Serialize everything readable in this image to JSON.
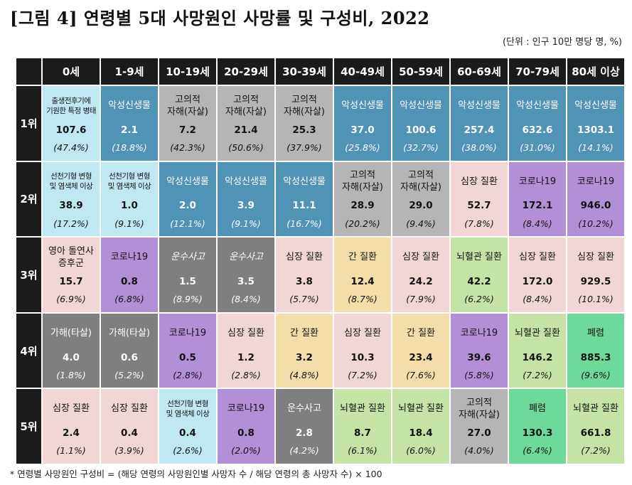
{
  "title": "[그림 4] 연령별 5대 사망원인 사망률 및 구성비, 2022",
  "unit": "(단위 : 인구 10만 명당 명, %)",
  "footnote": "* 연령별 사망원인 구성비 = (해당 연령의 사망원인별 사망자 수 / 해당 연령의 총 사망자 수) × 100",
  "colors": {
    "header": "#1b1b1b",
    "malignant_neoplasm": "#4f93b5",
    "suicide": "#b5b5b5",
    "perinatal": "#bfe8f2",
    "congenital": "#bfe8f2",
    "covid19": "#b38fd6",
    "heart": "#f2d6d6",
    "sids": "#f2d6d6",
    "transport": "#7f7f7f",
    "assault": "#7f7f7f",
    "liver": "#f5dcab",
    "cerebrovascular": "#c5e3a6",
    "pneumonia": "#6ed99a"
  },
  "columns": [
    "0세",
    "1-9세",
    "10-19세",
    "20-29세",
    "30-39세",
    "40-49세",
    "50-59세",
    "60-69세",
    "70-79세",
    "80세 이상"
  ],
  "rows": [
    {
      "rank": "1위",
      "cells": [
        {
          "name": "출생전후기에\n기원한 특정 병태",
          "value": "107.6",
          "pct": "(47.4%)",
          "bg": "#bfe8f2",
          "small": true
        },
        {
          "name": "악성신생물",
          "value": "2.1",
          "pct": "(18.8%)",
          "bg": "#4f93b5",
          "light": true
        },
        {
          "name": "고의적\n자해(자살)",
          "value": "7.2",
          "pct": "(42.3%)",
          "bg": "#b5b5b5"
        },
        {
          "name": "고의적\n자해(자살)",
          "value": "21.4",
          "pct": "(50.6%)",
          "bg": "#b5b5b5"
        },
        {
          "name": "고의적\n자해(자살)",
          "value": "25.3",
          "pct": "(37.9%)",
          "bg": "#b5b5b5"
        },
        {
          "name": "악성신생물",
          "value": "37.0",
          "pct": "(25.8%)",
          "bg": "#4f93b5",
          "light": true
        },
        {
          "name": "악성신생물",
          "value": "100.6",
          "pct": "(32.7%)",
          "bg": "#4f93b5",
          "light": true
        },
        {
          "name": "악성신생물",
          "value": "257.4",
          "pct": "(38.0%)",
          "bg": "#4f93b5",
          "light": true
        },
        {
          "name": "악성신생물",
          "value": "632.6",
          "pct": "(31.0%)",
          "bg": "#4f93b5",
          "light": true
        },
        {
          "name": "악성신생물",
          "value": "1303.1",
          "pct": "(14.1%)",
          "bg": "#4f93b5",
          "light": true
        }
      ]
    },
    {
      "rank": "2위",
      "cells": [
        {
          "name": "선천기형 변형\n및 염색체 이상",
          "value": "38.9",
          "pct": "(17.2%)",
          "bg": "#bfe8f2",
          "small": true
        },
        {
          "name": "선천기형 변형\n및 염색체 이상",
          "value": "1.0",
          "pct": "(9.1%)",
          "bg": "#bfe8f2",
          "small": true
        },
        {
          "name": "악성신생물",
          "value": "2.0",
          "pct": "(12.1%)",
          "bg": "#4f93b5",
          "light": true
        },
        {
          "name": "악성신생물",
          "value": "3.9",
          "pct": "(9.1%)",
          "bg": "#4f93b5",
          "light": true
        },
        {
          "name": "악성신생물",
          "value": "11.1",
          "pct": "(16.7%)",
          "bg": "#4f93b5",
          "light": true
        },
        {
          "name": "고의적\n자해(자살)",
          "value": "28.9",
          "pct": "(20.2%)",
          "bg": "#b5b5b5"
        },
        {
          "name": "고의적\n자해(자살)",
          "value": "29.0",
          "pct": "(9.4%)",
          "bg": "#b5b5b5"
        },
        {
          "name": "심장 질환",
          "value": "52.7",
          "pct": "(7.8%)",
          "bg": "#f2d6d6"
        },
        {
          "name": "코로나19",
          "value": "172.1",
          "pct": "(8.4%)",
          "bg": "#b38fd6"
        },
        {
          "name": "코로나19",
          "value": "946.0",
          "pct": "(10.2%)",
          "bg": "#b38fd6"
        }
      ]
    },
    {
      "rank": "3위",
      "cells": [
        {
          "name": "영아 돌연사\n증후군",
          "value": "15.7",
          "pct": "(6.9%)",
          "bg": "#f2d6d6"
        },
        {
          "name": "코로나19",
          "value": "0.8",
          "pct": "(6.8%)",
          "bg": "#b38fd6"
        },
        {
          "name": "운수사고",
          "value": "1.5",
          "pct": "(8.9%)",
          "bg": "#7f7f7f",
          "light": true,
          "italic": true
        },
        {
          "name": "운수사고",
          "value": "3.5",
          "pct": "(8.4%)",
          "bg": "#7f7f7f",
          "light": true,
          "italic": true
        },
        {
          "name": "심장 질환",
          "value": "3.8",
          "pct": "(5.7%)",
          "bg": "#f2d6d6"
        },
        {
          "name": "간 질환",
          "value": "12.4",
          "pct": "(8.7%)",
          "bg": "#f5dcab"
        },
        {
          "name": "심장 질환",
          "value": "24.2",
          "pct": "(7.9%)",
          "bg": "#f2d6d6"
        },
        {
          "name": "뇌혈관 질환",
          "value": "42.2",
          "pct": "(6.2%)",
          "bg": "#c5e3a6"
        },
        {
          "name": "심장 질환",
          "value": "172.0",
          "pct": "(8.4%)",
          "bg": "#f2d6d6"
        },
        {
          "name": "심장 질환",
          "value": "929.5",
          "pct": "(10.1%)",
          "bg": "#f2d6d6"
        }
      ]
    },
    {
      "rank": "4위",
      "cells": [
        {
          "name": "가해(타살)",
          "value": "4.0",
          "pct": "(1.8%)",
          "bg": "#7f7f7f",
          "light": true
        },
        {
          "name": "가해(타살)",
          "value": "0.6",
          "pct": "(5.2%)",
          "bg": "#7f7f7f",
          "light": true
        },
        {
          "name": "코로나19",
          "value": "0.5",
          "pct": "(2.8%)",
          "bg": "#b38fd6"
        },
        {
          "name": "심장 질환",
          "value": "1.2",
          "pct": "(2.8%)",
          "bg": "#f2d6d6"
        },
        {
          "name": "간 질환",
          "value": "3.2",
          "pct": "(4.8%)",
          "bg": "#f5dcab"
        },
        {
          "name": "심장 질환",
          "value": "10.3",
          "pct": "(7.2%)",
          "bg": "#f2d6d6"
        },
        {
          "name": "간 질환",
          "value": "23.4",
          "pct": "(7.6%)",
          "bg": "#f5dcab"
        },
        {
          "name": "코로나19",
          "value": "39.6",
          "pct": "(5.8%)",
          "bg": "#b38fd6"
        },
        {
          "name": "뇌혈관 질환",
          "value": "146.2",
          "pct": "(7.2%)",
          "bg": "#c5e3a6"
        },
        {
          "name": "폐렴",
          "value": "885.3",
          "pct": "(9.6%)",
          "bg": "#6ed99a"
        }
      ]
    },
    {
      "rank": "5위",
      "cells": [
        {
          "name": "심장 질환",
          "value": "2.4",
          "pct": "(1.1%)",
          "bg": "#f2d6d6"
        },
        {
          "name": "심장 질환",
          "value": "0.4",
          "pct": "(3.9%)",
          "bg": "#f2d6d6"
        },
        {
          "name": "선천기형 변형\n및 염색체 이상",
          "value": "0.4",
          "pct": "(2.6%)",
          "bg": "#bfe8f2",
          "small": true
        },
        {
          "name": "코로나19",
          "value": "0.8",
          "pct": "(2.0%)",
          "bg": "#b38fd6"
        },
        {
          "name": "운수사고",
          "value": "2.8",
          "pct": "(4.2%)",
          "bg": "#7f7f7f",
          "light": true
        },
        {
          "name": "뇌혈관 질환",
          "value": "8.7",
          "pct": "(6.1%)",
          "bg": "#c5e3a6"
        },
        {
          "name": "뇌혈관 질환",
          "value": "18.4",
          "pct": "(6.0%)",
          "bg": "#c5e3a6"
        },
        {
          "name": "고의적\n자해(자살)",
          "value": "27.0",
          "pct": "(4.0%)",
          "bg": "#b5b5b5"
        },
        {
          "name": "폐렴",
          "value": "130.3",
          "pct": "(6.4%)",
          "bg": "#6ed99a"
        },
        {
          "name": "뇌혈관 질환",
          "value": "661.8",
          "pct": "(7.2%)",
          "bg": "#c5e3a6"
        }
      ]
    }
  ]
}
